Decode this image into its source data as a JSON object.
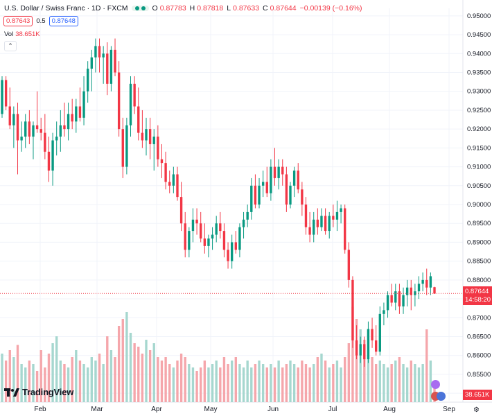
{
  "header": {
    "symbol": "U.S. Dollar / Swiss Franc · 1D · FXCM",
    "ohlc": [
      {
        "k": "O",
        "v": "0.87783"
      },
      {
        "k": "H",
        "v": "0.87818"
      },
      {
        "k": "L",
        "v": "0.87633"
      },
      {
        "k": "C",
        "v": "0.87644"
      }
    ],
    "change": "−0.00139 (−0.16%)",
    "sell_price": "0.87643",
    "spread": "0.5",
    "buy_price": "0.87648",
    "vol_label": "Vol",
    "vol_value": "38.651K"
  },
  "logo_text": "TradingView",
  "last_price_label": "0.87644",
  "countdown": "14:58:20",
  "volume_label": "38.651K",
  "colors": {
    "up": "#089981",
    "down": "#f23645",
    "up_vol": "#a6d7cf",
    "down_vol": "#f5a6ab",
    "grid": "#f0f3fa",
    "text": "#131722"
  },
  "chart_data": {
    "type": "candlestick",
    "x_ticks": [
      "Feb",
      "Mar",
      "Apr",
      "May",
      "Jun",
      "Jul",
      "Aug",
      "Sep"
    ],
    "y_ticks": [
      "0.85000",
      "0.85500",
      "0.86000",
      "0.86500",
      "0.87000",
      "0.87500",
      "0.88000",
      "0.88500",
      "0.89000",
      "0.89500",
      "0.90000",
      "0.90500",
      "0.91000",
      "0.91500",
      "0.92000",
      "0.92500",
      "0.93000",
      "0.93500",
      "0.94000",
      "0.94500",
      "0.95000"
    ],
    "ylim": [
      0.848,
      0.952
    ],
    "last_price": 0.87644,
    "candles": [
      [
        0.924,
        0.934,
        0.923,
        0.933,
        28
      ],
      [
        0.933,
        0.934,
        0.925,
        0.926,
        24
      ],
      [
        0.926,
        0.931,
        0.92,
        0.921,
        30
      ],
      [
        0.921,
        0.926,
        0.915,
        0.924,
        26
      ],
      [
        0.924,
        0.927,
        0.908,
        0.917,
        33
      ],
      [
        0.917,
        0.922,
        0.914,
        0.918,
        22
      ],
      [
        0.918,
        0.924,
        0.915,
        0.922,
        20
      ],
      [
        0.922,
        0.925,
        0.916,
        0.918,
        24
      ],
      [
        0.918,
        0.922,
        0.912,
        0.921,
        22
      ],
      [
        0.921,
        0.93,
        0.919,
        0.92,
        18
      ],
      [
        0.92,
        0.923,
        0.917,
        0.919,
        30
      ],
      [
        0.919,
        0.924,
        0.912,
        0.914,
        20
      ],
      [
        0.914,
        0.918,
        0.906,
        0.909,
        28
      ],
      [
        0.909,
        0.919,
        0.905,
        0.917,
        34
      ],
      [
        0.917,
        0.922,
        0.913,
        0.918,
        38
      ],
      [
        0.918,
        0.925,
        0.914,
        0.921,
        24
      ],
      [
        0.921,
        0.927,
        0.918,
        0.92,
        22
      ],
      [
        0.92,
        0.927,
        0.917,
        0.924,
        20
      ],
      [
        0.924,
        0.928,
        0.92,
        0.922,
        26
      ],
      [
        0.922,
        0.928,
        0.919,
        0.926,
        30
      ],
      [
        0.926,
        0.931,
        0.922,
        0.923,
        24
      ],
      [
        0.923,
        0.934,
        0.921,
        0.93,
        22
      ],
      [
        0.93,
        0.938,
        0.927,
        0.936,
        20
      ],
      [
        0.936,
        0.941,
        0.93,
        0.939,
        26
      ],
      [
        0.939,
        0.944,
        0.935,
        0.942,
        24
      ],
      [
        0.942,
        0.944,
        0.935,
        0.939,
        28
      ],
      [
        0.939,
        0.942,
        0.932,
        0.94,
        22
      ],
      [
        0.94,
        0.943,
        0.929,
        0.932,
        38
      ],
      [
        0.932,
        0.942,
        0.93,
        0.941,
        30
      ],
      [
        0.941,
        0.944,
        0.934,
        0.935,
        26
      ],
      [
        0.935,
        0.938,
        0.918,
        0.92,
        44
      ],
      [
        0.92,
        0.923,
        0.907,
        0.91,
        48
      ],
      [
        0.91,
        0.923,
        0.908,
        0.921,
        52
      ],
      [
        0.921,
        0.934,
        0.918,
        0.932,
        40
      ],
      [
        0.932,
        0.934,
        0.924,
        0.926,
        34
      ],
      [
        0.926,
        0.931,
        0.917,
        0.919,
        32
      ],
      [
        0.919,
        0.925,
        0.915,
        0.917,
        28
      ],
      [
        0.917,
        0.923,
        0.913,
        0.92,
        36
      ],
      [
        0.92,
        0.923,
        0.912,
        0.916,
        30
      ],
      [
        0.916,
        0.92,
        0.909,
        0.918,
        34
      ],
      [
        0.918,
        0.921,
        0.91,
        0.912,
        26
      ],
      [
        0.912,
        0.916,
        0.907,
        0.911,
        24
      ],
      [
        0.911,
        0.914,
        0.904,
        0.906,
        26
      ],
      [
        0.906,
        0.909,
        0.903,
        0.905,
        22
      ],
      [
        0.905,
        0.91,
        0.903,
        0.908,
        20
      ],
      [
        0.908,
        0.91,
        0.901,
        0.902,
        24
      ],
      [
        0.902,
        0.906,
        0.893,
        0.895,
        28
      ],
      [
        0.895,
        0.898,
        0.886,
        0.888,
        26
      ],
      [
        0.888,
        0.894,
        0.886,
        0.893,
        22
      ],
      [
        0.893,
        0.899,
        0.89,
        0.896,
        20
      ],
      [
        0.896,
        0.899,
        0.892,
        0.895,
        18
      ],
      [
        0.895,
        0.898,
        0.89,
        0.891,
        20
      ],
      [
        0.891,
        0.895,
        0.887,
        0.889,
        24
      ],
      [
        0.889,
        0.892,
        0.886,
        0.891,
        20
      ],
      [
        0.891,
        0.894,
        0.888,
        0.892,
        22
      ],
      [
        0.892,
        0.897,
        0.89,
        0.895,
        24
      ],
      [
        0.895,
        0.898,
        0.891,
        0.893,
        20
      ],
      [
        0.893,
        0.895,
        0.886,
        0.888,
        26
      ],
      [
        0.888,
        0.89,
        0.883,
        0.885,
        22
      ],
      [
        0.885,
        0.892,
        0.883,
        0.89,
        24
      ],
      [
        0.89,
        0.893,
        0.887,
        0.888,
        26
      ],
      [
        0.888,
        0.895,
        0.886,
        0.894,
        22
      ],
      [
        0.894,
        0.898,
        0.891,
        0.896,
        20
      ],
      [
        0.896,
        0.9,
        0.894,
        0.898,
        24
      ],
      [
        0.898,
        0.907,
        0.896,
        0.905,
        20
      ],
      [
        0.905,
        0.908,
        0.899,
        0.9,
        22
      ],
      [
        0.9,
        0.907,
        0.899,
        0.905,
        24
      ],
      [
        0.905,
        0.909,
        0.902,
        0.906,
        22
      ],
      [
        0.906,
        0.91,
        0.902,
        0.903,
        20
      ],
      [
        0.903,
        0.912,
        0.901,
        0.91,
        22
      ],
      [
        0.91,
        0.915,
        0.905,
        0.907,
        20
      ],
      [
        0.907,
        0.912,
        0.904,
        0.91,
        24
      ],
      [
        0.91,
        0.912,
        0.905,
        0.908,
        20
      ],
      [
        0.908,
        0.91,
        0.898,
        0.9,
        22
      ],
      [
        0.9,
        0.906,
        0.899,
        0.905,
        24
      ],
      [
        0.905,
        0.91,
        0.902,
        0.909,
        22
      ],
      [
        0.909,
        0.911,
        0.903,
        0.904,
        20
      ],
      [
        0.904,
        0.906,
        0.897,
        0.9,
        24
      ],
      [
        0.9,
        0.902,
        0.892,
        0.894,
        22
      ],
      [
        0.894,
        0.898,
        0.89,
        0.892,
        20
      ],
      [
        0.892,
        0.898,
        0.89,
        0.896,
        22
      ],
      [
        0.896,
        0.899,
        0.892,
        0.894,
        26
      ],
      [
        0.894,
        0.899,
        0.893,
        0.897,
        28
      ],
      [
        0.897,
        0.899,
        0.892,
        0.893,
        24
      ],
      [
        0.893,
        0.898,
        0.891,
        0.897,
        20
      ],
      [
        0.897,
        0.9,
        0.894,
        0.896,
        22
      ],
      [
        0.896,
        0.901,
        0.893,
        0.898,
        24
      ],
      [
        0.898,
        0.9,
        0.895,
        0.899,
        20
      ],
      [
        0.899,
        0.9,
        0.887,
        0.888,
        26
      ],
      [
        0.888,
        0.89,
        0.878,
        0.88,
        34
      ],
      [
        0.88,
        0.881,
        0.862,
        0.864,
        55
      ],
      [
        0.864,
        0.868,
        0.859,
        0.86,
        48
      ],
      [
        0.86,
        0.865,
        0.858,
        0.863,
        42
      ],
      [
        0.863,
        0.865,
        0.857,
        0.859,
        36
      ],
      [
        0.859,
        0.869,
        0.858,
        0.867,
        30
      ],
      [
        0.867,
        0.87,
        0.862,
        0.864,
        26
      ],
      [
        0.864,
        0.868,
        0.86,
        0.861,
        22
      ],
      [
        0.861,
        0.873,
        0.86,
        0.871,
        24
      ],
      [
        0.871,
        0.874,
        0.868,
        0.872,
        22
      ],
      [
        0.872,
        0.877,
        0.87,
        0.876,
        20
      ],
      [
        0.876,
        0.879,
        0.873,
        0.874,
        22
      ],
      [
        0.874,
        0.879,
        0.872,
        0.877,
        24
      ],
      [
        0.877,
        0.879,
        0.871,
        0.873,
        26
      ],
      [
        0.873,
        0.878,
        0.871,
        0.876,
        22
      ],
      [
        0.876,
        0.88,
        0.873,
        0.878,
        20
      ],
      [
        0.878,
        0.88,
        0.872,
        0.876,
        24
      ],
      [
        0.876,
        0.879,
        0.873,
        0.877,
        22
      ],
      [
        0.877,
        0.881,
        0.875,
        0.879,
        20
      ],
      [
        0.879,
        0.882,
        0.877,
        0.88,
        22
      ],
      [
        0.88,
        0.883,
        0.876,
        0.878,
        42
      ],
      [
        0.878,
        0.882,
        0.876,
        0.881,
        24
      ],
      [
        0.8781,
        0.8782,
        0.8763,
        0.8764,
        10
      ]
    ]
  }
}
